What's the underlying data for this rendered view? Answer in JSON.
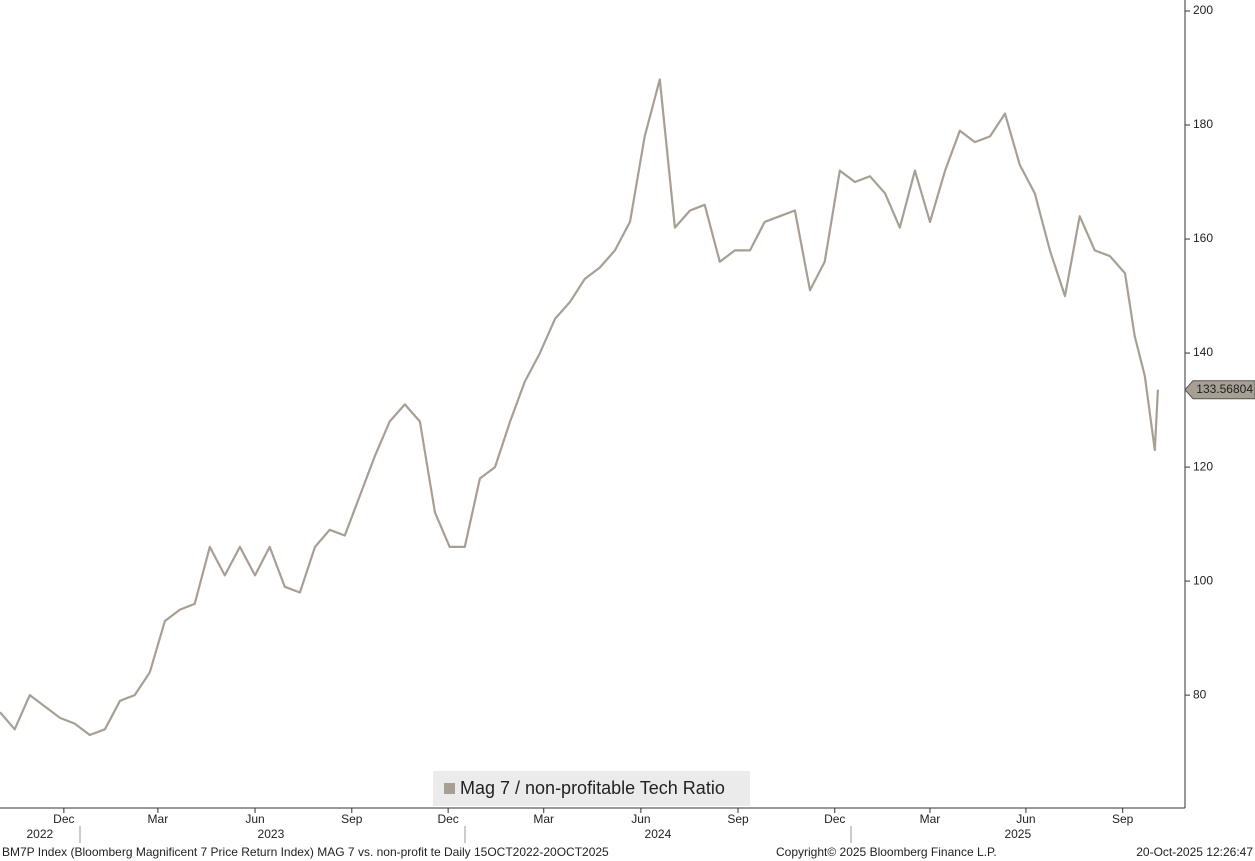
{
  "chart_data": {
    "type": "line",
    "series": [
      {
        "name": "Mag 7 / non-profitable Tech Ratio",
        "color": "#a89f94",
        "x": [
          2022.793,
          2022.831,
          2022.87,
          2022.909,
          2022.948,
          2022.986,
          2023.025,
          2023.064,
          2023.103,
          2023.141,
          2023.18,
          2023.219,
          2023.258,
          2023.296,
          2023.335,
          2023.374,
          2023.413,
          2023.452,
          2023.49,
          2023.529,
          2023.568,
          2023.607,
          2023.645,
          2023.684,
          2023.723,
          2023.762,
          2023.8,
          2023.839,
          2023.878,
          2023.917,
          2023.955,
          2023.994,
          2024.033,
          2024.072,
          2024.111,
          2024.149,
          2024.188,
          2024.227,
          2024.266,
          2024.304,
          2024.343,
          2024.382,
          2024.421,
          2024.459,
          2024.498,
          2024.537,
          2024.576,
          2024.614,
          2024.653,
          2024.692,
          2024.731,
          2024.769,
          2024.808,
          2024.847,
          2024.886,
          2024.924,
          2024.963,
          2025.002,
          2025.041,
          2025.08,
          2025.118,
          2025.157,
          2025.196,
          2025.235,
          2025.273,
          2025.312,
          2025.351,
          2025.39,
          2025.428,
          2025.467,
          2025.506,
          2025.545,
          2025.583,
          2025.622,
          2025.661,
          2025.7,
          2025.725,
          2025.751,
          2025.777,
          2025.785
        ],
        "values": [
          77,
          74,
          80,
          78,
          76,
          75,
          73,
          74,
          79,
          80,
          84,
          93,
          95,
          96,
          106,
          101,
          106,
          101,
          106,
          99,
          98,
          106,
          109,
          108,
          115,
          122,
          128,
          131,
          128,
          112,
          106,
          106,
          118,
          120,
          128,
          135,
          140,
          146,
          149,
          153,
          155,
          158,
          163,
          178,
          188,
          162,
          165,
          166,
          156,
          158,
          158,
          163,
          164,
          165,
          151,
          156,
          172,
          170,
          171,
          168,
          162,
          172,
          163,
          172,
          179,
          177,
          178,
          182,
          173,
          168,
          158,
          150,
          164,
          158,
          157,
          154,
          143,
          136,
          123,
          133.56804
        ]
      }
    ],
    "xlim": [
      2022.793,
      2025.855
    ],
    "ylim": [
      60.2,
      200
    ],
    "yticks": [
      80,
      100,
      120,
      140,
      160,
      180,
      200
    ],
    "xticks": [
      {
        "value": 2022.958,
        "label": "Dec"
      },
      {
        "value": 2023.201,
        "label": "Mar"
      },
      {
        "value": 2023.452,
        "label": "Jun"
      },
      {
        "value": 2023.702,
        "label": "Sep"
      },
      {
        "value": 2023.951,
        "label": "Dec"
      },
      {
        "value": 2024.198,
        "label": "Mar"
      },
      {
        "value": 2024.449,
        "label": "Jun"
      },
      {
        "value": 2024.7,
        "label": "Sep"
      },
      {
        "value": 2024.95,
        "label": "Dec"
      },
      {
        "value": 2025.196,
        "label": "Mar"
      },
      {
        "value": 2025.444,
        "label": "Jun"
      },
      {
        "value": 2025.694,
        "label": "Sep"
      }
    ],
    "year_ticks": [
      {
        "value": 2022.896,
        "label": "2022"
      },
      {
        "value": 2023.493,
        "label": "2023"
      },
      {
        "value": 2024.493,
        "label": "2024"
      },
      {
        "value": 2025.423,
        "label": "2025"
      }
    ],
    "footer_left": "BM7P Index (Bloomberg Magnificent 7 Price Return Index) MAG 7 vs. non-profit te Daily 15OCT2022-20OCT2025",
    "footer_center": "Copyright© 2025 Bloomberg Finance L.P.",
    "footer_right": "20-Oct-2025 12:26:47"
  }
}
